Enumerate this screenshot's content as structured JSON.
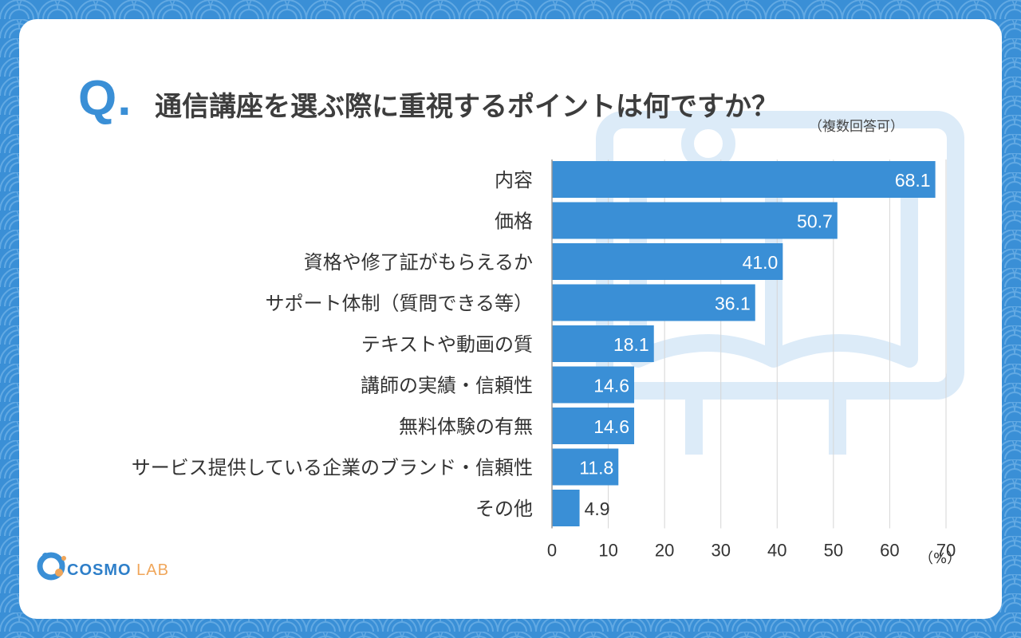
{
  "header": {
    "q_mark": "Q.",
    "title": "通信講座を選ぶ際に重視するポイントは何ですか？",
    "note": "（複数回答可）"
  },
  "brand": {
    "name_main": "COSMO",
    "name_sub": "LAB"
  },
  "colors": {
    "bar": "#3a8fd6",
    "background": "#3a8fd6",
    "title": "#3d3d3d",
    "grid": "#d6d6d6"
  },
  "chart_data": {
    "type": "bar",
    "orientation": "horizontal",
    "title": "通信講座を選ぶ際に重視するポイントは何ですか？",
    "subtitle": "（複数回答可）",
    "categories": [
      "内容",
      "価格",
      "資格や修了証がもらえるか",
      "サポート体制（質問できる等）",
      "テキストや動画の質",
      "講師の実績・信頼性",
      "無料体験の有無",
      "サービス提供している企業のブランド・信頼性",
      "その他"
    ],
    "values": [
      68.1,
      50.7,
      41.0,
      36.1,
      18.1,
      14.6,
      14.6,
      11.8,
      4.9
    ],
    "value_labels": [
      "68.1",
      "50.7",
      "41.0",
      "36.1",
      "18.1",
      "14.6",
      "14.6",
      "11.8",
      "4.9"
    ],
    "xlim": [
      0,
      70
    ],
    "xticks": [
      0,
      10,
      20,
      30,
      40,
      50,
      60,
      70
    ],
    "xlabel": "（%）",
    "grid": true
  }
}
